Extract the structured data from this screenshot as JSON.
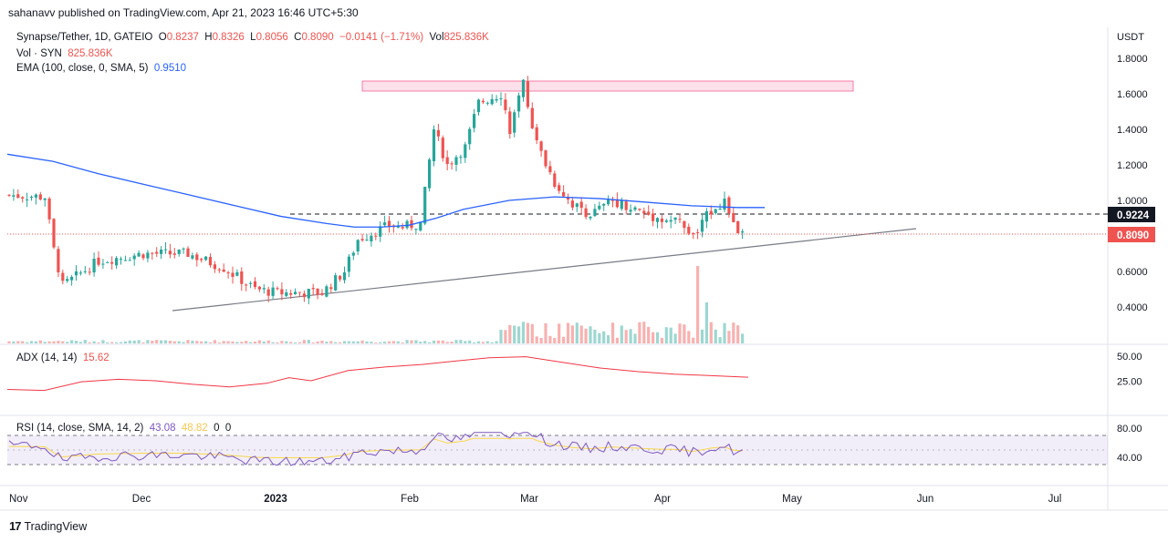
{
  "header": {
    "published": "sahanavv published on TradingView.com, Apr 21, 2023 16:46 UTC+5:30"
  },
  "legend_main": {
    "symbol": "Synapse/Tether, 1D, GATEIO",
    "o_label": "O",
    "o": "0.8237",
    "h_label": "H",
    "h": "0.8326",
    "l_label": "L",
    "l": "0.8056",
    "c_label": "C",
    "c": "0.8090",
    "change": "−0.0141 (−1.71%)",
    "vol_label": "Vol",
    "vol": "825.836K"
  },
  "legend_vol": {
    "label": "Vol · SYN",
    "value": "825.836K"
  },
  "legend_ema": {
    "label": "EMA (100, close, 0, SMA, 5)",
    "value": "0.9510"
  },
  "legend_adx": {
    "label": "ADX (14, 14)",
    "value": "15.62"
  },
  "legend_rsi": {
    "label": "RSI (14, close, SMA, 14, 2)",
    "rsi": "43.08",
    "sma": "48.82",
    "z1": "0",
    "z2": "0"
  },
  "brand": {
    "logo": "17",
    "name": "TradingView"
  },
  "colors": {
    "up": "#26a69a",
    "down": "#ef5350",
    "ema": "#2962ff",
    "adx": "#f23645",
    "rsi": "#7e57c2",
    "rsi_ma": "#f9d74b",
    "zone": "#f8bbd0"
  },
  "chart_data": {
    "type": "candlestick",
    "price_axis": {
      "unit": "USDT",
      "ticks": [
        "1.8000",
        "1.6000",
        "1.4000",
        "1.2000",
        "1.0000",
        "0.8000",
        "0.6000",
        "0.4000"
      ]
    },
    "time_axis": {
      "ticks": [
        "Nov",
        "Dec",
        "2023",
        "Feb",
        "Mar",
        "Apr",
        "May",
        "Jun",
        "Jul"
      ]
    },
    "price_labels": {
      "dashed": "0.9224",
      "last": "0.8090"
    },
    "adx_axis": {
      "ticks": [
        "50.00",
        "25.00"
      ]
    },
    "rsi_axis": {
      "ticks": [
        "80.00",
        "40.00"
      ]
    },
    "ema_path": [
      [
        0,
        1.26
      ],
      [
        0.05,
        1.22
      ],
      [
        0.1,
        1.15
      ],
      [
        0.15,
        1.09
      ],
      [
        0.2,
        1.03
      ],
      [
        0.25,
        0.97
      ],
      [
        0.3,
        0.91
      ],
      [
        0.35,
        0.87
      ],
      [
        0.38,
        0.85
      ],
      [
        0.41,
        0.85
      ],
      [
        0.44,
        0.86
      ],
      [
        0.47,
        0.9
      ],
      [
        0.5,
        0.95
      ],
      [
        0.55,
        1.0
      ],
      [
        0.6,
        1.02
      ],
      [
        0.65,
        1.01
      ],
      [
        0.7,
        0.99
      ],
      [
        0.75,
        0.97
      ],
      [
        0.8,
        0.96
      ],
      [
        0.83,
        0.96
      ]
    ],
    "adx_path": [
      [
        0,
        0.33
      ],
      [
        0.05,
        0.31
      ],
      [
        0.1,
        0.48
      ],
      [
        0.15,
        0.53
      ],
      [
        0.2,
        0.5
      ],
      [
        0.25,
        0.43
      ],
      [
        0.3,
        0.38
      ],
      [
        0.35,
        0.45
      ],
      [
        0.38,
        0.56
      ],
      [
        0.41,
        0.5
      ],
      [
        0.46,
        0.7
      ],
      [
        0.51,
        0.77
      ],
      [
        0.56,
        0.82
      ],
      [
        0.6,
        0.88
      ],
      [
        0.65,
        0.95
      ],
      [
        0.7,
        0.97
      ],
      [
        0.75,
        0.86
      ],
      [
        0.8,
        0.75
      ],
      [
        0.85,
        0.68
      ],
      [
        0.9,
        0.63
      ],
      [
        0.95,
        0.6
      ],
      [
        1,
        0.57
      ]
    ]
  }
}
